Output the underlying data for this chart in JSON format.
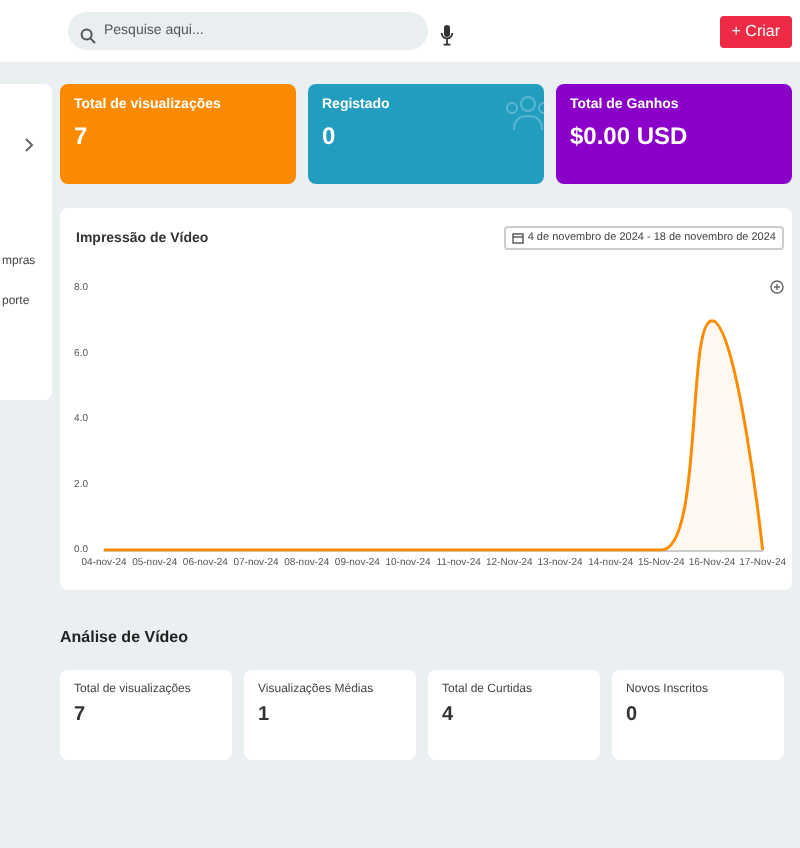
{
  "chart_data": [
    {
      "type": "other",
      "annotations": [
        "Pesquise aqui...",
        "+ Criar",
        "mpras",
        "porte"
      ],
      "categories": [
        "Total de visualizações",
        "Registado",
        "Total de Ganhos"
      ],
      "value_labels": [
        "7",
        "0",
        "$0.00 USD"
      ],
      "colors": [
        "#fb8a00",
        "#229dbf",
        "#8a00c8"
      ]
    },
    {
      "type": "area",
      "title": "Impressão de Vídeo",
      "annotations": [
        "4 de novembro de 2024 - 18 de novembro de 2024"
      ],
      "categories": [
        "04-nov-24",
        "05-nov-24",
        "06-nov-24",
        "07-nov-24",
        "08-nov-24",
        "09-nov-24",
        "10-nov-24",
        "11-nov-24",
        "12-Nov-24",
        "13-nov-24",
        "14-nov-24",
        "15-Nov-24",
        "16-Nov-24",
        "17-Nov-24"
      ],
      "values": [
        0,
        0,
        0,
        0,
        0,
        0,
        0,
        0,
        0,
        0,
        0,
        0,
        7,
        0
      ],
      "color": "#ff8c00",
      "ylim": [
        0,
        8
      ],
      "yticks": [
        {
          "value": 0,
          "label": "0.0"
        },
        {
          "value": 2,
          "label": "2.0"
        },
        {
          "value": 4,
          "label": "4.0"
        },
        {
          "value": 6,
          "label": "6.0"
        },
        {
          "value": 8,
          "label": "8.0"
        }
      ],
      "grid": false,
      "marker": "none"
    },
    {
      "type": "other",
      "title": "Análise de Vídeo",
      "categories": [
        "Total de visualizações",
        "Visualizações Médias",
        "Total de Curtidas",
        "Novos Inscritos"
      ],
      "value_labels": [
        "7",
        "1",
        "4",
        "0"
      ]
    }
  ]
}
